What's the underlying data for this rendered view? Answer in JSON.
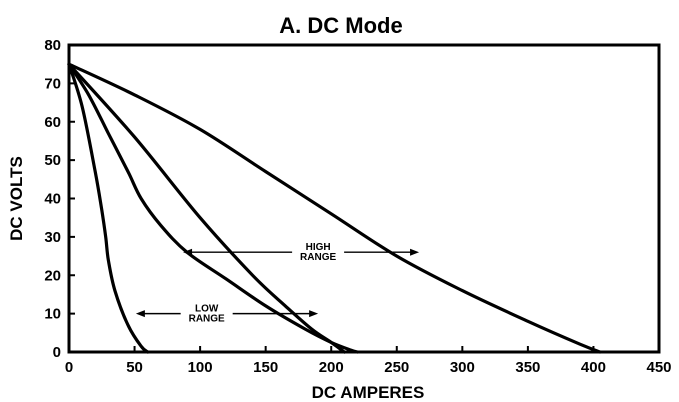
{
  "chart_data": {
    "type": "line",
    "title": "A.   DC Mode",
    "xlabel": "DC  AMPERES",
    "ylabel": "DC  VOLTS",
    "xlim": [
      0,
      450
    ],
    "ylim": [
      0,
      80
    ],
    "xticks": [
      0,
      50,
      100,
      150,
      200,
      250,
      300,
      350,
      400,
      450
    ],
    "yticks": [
      0,
      10,
      20,
      30,
      40,
      50,
      60,
      70,
      80
    ],
    "grid": false,
    "series": [
      {
        "x": [
          0,
          10,
          20,
          25,
          28,
          30,
          35,
          45,
          55,
          60
        ],
        "y": [
          75,
          64,
          47,
          37,
          30,
          24,
          16,
          7,
          1.5,
          0
        ]
      },
      {
        "x": [
          0,
          15,
          30,
          45,
          55,
          70,
          90,
          120,
          150,
          180,
          200,
          215,
          220
        ],
        "y": [
          75,
          67,
          57,
          47,
          40,
          33,
          26,
          19,
          12,
          6,
          2.5,
          0.5,
          0
        ]
      },
      {
        "x": [
          0,
          50,
          100,
          140,
          165,
          185,
          200,
          210
        ],
        "y": [
          75,
          56,
          35,
          20,
          12,
          6,
          2.5,
          0
        ]
      },
      {
        "x": [
          0,
          50,
          100,
          150,
          200,
          250,
          300,
          350,
          390,
          405
        ],
        "y": [
          75,
          67,
          58,
          47,
          36,
          25,
          16,
          8,
          2,
          0
        ]
      }
    ],
    "annotations": [
      {
        "lines": [
          "HIGH",
          "RANGE"
        ],
        "x": 190,
        "y": 25,
        "arrow_left_x": 87,
        "arrow_right_x": 267,
        "arrow_y": 26
      },
      {
        "lines": [
          "LOW",
          "RANGE"
        ],
        "x": 105,
        "y": 9,
        "arrow_left_x": 51,
        "arrow_right_x": 190,
        "arrow_y": 10
      }
    ]
  }
}
